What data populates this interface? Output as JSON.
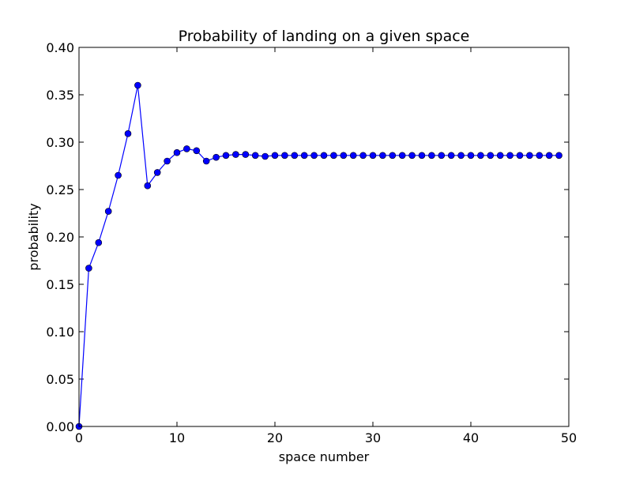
{
  "chart_data": {
    "type": "line",
    "title": "Probability of landing on a given space",
    "xlabel": "space number",
    "ylabel": "probability",
    "xlim": [
      0,
      50
    ],
    "ylim": [
      0,
      0.4
    ],
    "xticks": [
      0,
      10,
      20,
      30,
      40,
      50
    ],
    "xtick_labels": [
      "0",
      "10",
      "20",
      "30",
      "40",
      "50"
    ],
    "yticks": [
      0,
      0.05,
      0.1,
      0.15,
      0.2,
      0.25,
      0.3,
      0.35,
      0.4
    ],
    "ytick_labels": [
      "0.00",
      "0.05",
      "0.10",
      "0.15",
      "0.20",
      "0.25",
      "0.30",
      "0.35",
      "0.40"
    ],
    "grid": false,
    "legend": "none",
    "color": "#0000ff",
    "marker": "circle",
    "series": [
      {
        "x": [
          0,
          1,
          2,
          3,
          4,
          5,
          6,
          7,
          8,
          9,
          10,
          11,
          12,
          13,
          14,
          15,
          16,
          17,
          18,
          19,
          20,
          21,
          22,
          23,
          24,
          25,
          26,
          27,
          28,
          29,
          30,
          31,
          32,
          33,
          34,
          35,
          36,
          37,
          38,
          39,
          40,
          41,
          42,
          43,
          44,
          45,
          46,
          47,
          48,
          49
        ],
        "y": [
          0.0,
          0.167,
          0.194,
          0.227,
          0.265,
          0.309,
          0.36,
          0.254,
          0.268,
          0.28,
          0.289,
          0.293,
          0.291,
          0.28,
          0.284,
          0.286,
          0.287,
          0.287,
          0.286,
          0.285,
          0.286,
          0.286,
          0.286,
          0.286,
          0.286,
          0.286,
          0.286,
          0.286,
          0.286,
          0.286,
          0.286,
          0.286,
          0.286,
          0.286,
          0.286,
          0.286,
          0.286,
          0.286,
          0.286,
          0.286,
          0.286,
          0.286,
          0.286,
          0.286,
          0.286,
          0.286,
          0.286,
          0.286,
          0.286,
          0.286
        ]
      }
    ]
  }
}
